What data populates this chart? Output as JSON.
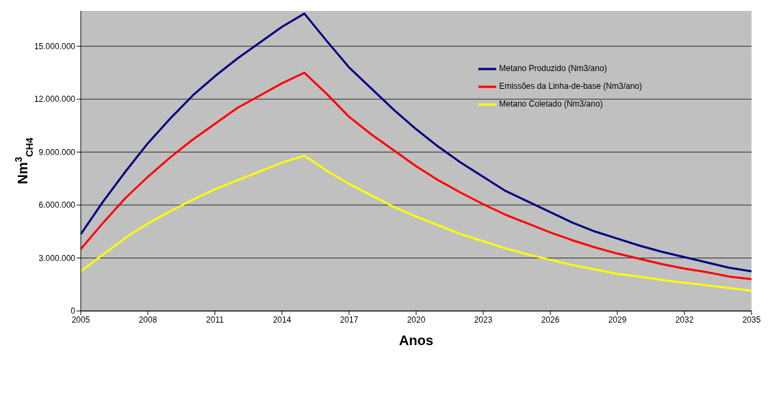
{
  "chart_data": {
    "type": "line",
    "xlabel": "Anos",
    "ylabel": "Nm$^{3}$$_{CH4}$",
    "x": [
      2005,
      2006,
      2007,
      2008,
      2009,
      2010,
      2011,
      2012,
      2013,
      2014,
      2015,
      2016,
      2017,
      2018,
      2019,
      2020,
      2021,
      2022,
      2023,
      2024,
      2025,
      2026,
      2027,
      2028,
      2029,
      2030,
      2031,
      2032,
      2033,
      2034,
      2035
    ],
    "series": [
      {
        "name": "Metano Produzido (Nm3/ano)",
        "color": "#000080",
        "values": [
          4350000,
          6200000,
          7900000,
          9500000,
          10900000,
          12200000,
          13300000,
          14300000,
          15200000,
          16100000,
          16850000,
          15300000,
          13800000,
          12600000,
          11400000,
          10300000,
          9300000,
          8400000,
          7600000,
          6800000,
          6200000,
          5600000,
          5000000,
          4500000,
          4100000,
          3700000,
          3350000,
          3050000,
          2750000,
          2450000,
          2250000
        ]
      },
      {
        "name": "Emissões da Linha-de-base (Nm3/ano)",
        "color": "#ff0000",
        "values": [
          3500000,
          5000000,
          6400000,
          7600000,
          8700000,
          9700000,
          10600000,
          11500000,
          12200000,
          12900000,
          13500000,
          12300000,
          11000000,
          10000000,
          9100000,
          8200000,
          7400000,
          6700000,
          6050000,
          5450000,
          4950000,
          4450000,
          4000000,
          3600000,
          3250000,
          2950000,
          2650000,
          2400000,
          2200000,
          1950000,
          1800000
        ]
      },
      {
        "name": "Metano Coletado (Nm3/ano)",
        "color": "#ffff00",
        "values": [
          2250000,
          3200000,
          4150000,
          4950000,
          5650000,
          6300000,
          6900000,
          7400000,
          7900000,
          8400000,
          8800000,
          7950000,
          7200000,
          6550000,
          5900000,
          5350000,
          4850000,
          4350000,
          3950000,
          3550000,
          3200000,
          2900000,
          2600000,
          2350000,
          2100000,
          1950000,
          1750000,
          1600000,
          1450000,
          1300000,
          1150000
        ]
      }
    ],
    "xlim": [
      2005,
      2035
    ],
    "xticks": [
      2005,
      2008,
      2011,
      2014,
      2017,
      2020,
      2023,
      2026,
      2029,
      2032,
      2035
    ],
    "ylim": [
      0,
      17000000
    ],
    "yticks": [
      0,
      {
        "value": 3000000,
        "label": "3.000.000"
      },
      {
        "value": 6000000,
        "label": "6.000.000"
      },
      {
        "value": 9000000,
        "label": "9.000.000"
      },
      {
        "value": 12000000,
        "label": "12.000.000"
      },
      {
        "value": 15000000,
        "label": "15.000.000"
      }
    ],
    "grid": "y",
    "legend": "top right",
    "marker": "none",
    "line_style": "solid"
  }
}
